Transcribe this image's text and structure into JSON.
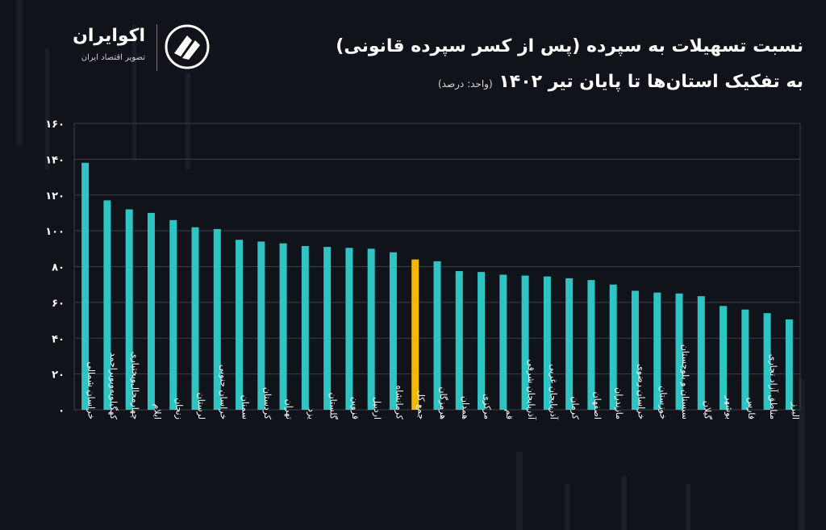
{
  "header": {
    "title_line1": "نسبت تسهیلات به سپرده (پس از کسر سپرده قانونی)",
    "title_line2": "به تفکیک استان‌ها تا پایان تیر ۱۴۰۲",
    "unit": "(واحد: درصد)"
  },
  "logo": {
    "name": "اکوایران",
    "tagline": "تصویر اقتصاد ایران"
  },
  "colors": {
    "bar": "#2ec4c4",
    "highlight": "#f5b700",
    "grid": "#3a3f48",
    "background": "#101319"
  },
  "chart_data": {
    "type": "bar",
    "title": "نسبت تسهیلات به سپرده (پس از کسر سپرده قانونی) به تفکیک استان‌ها تا پایان تیر ۱۴۰۲",
    "xlabel": "",
    "ylabel": "",
    "ylim": [
      0,
      160
    ],
    "yticks": [
      0,
      20,
      40,
      60,
      80,
      100,
      120,
      140,
      160
    ],
    "ytick_labels": [
      "۰",
      "۲۰",
      "۴۰",
      "۶۰",
      "۸۰",
      "۱۰۰",
      "۱۲۰",
      "۱۴۰",
      "۱۶۰"
    ],
    "grid": true,
    "highlight_category": "جمع کل",
    "categories": [
      "خراسان شمالی",
      "کهگیلویه‌وبویراحمد",
      "چهارمحال‌وبختیاری",
      "ایلام",
      "زنجان",
      "لرستان",
      "خراسان جنوبی",
      "سمنان",
      "کردستان",
      "تهران",
      "یزد",
      "گلستان",
      "قزوین",
      "اردبیل",
      "کرمانشاه",
      "جمع کل",
      "هرمزگان",
      "همدان",
      "مرکزی",
      "قم",
      "آذربایجان شرقی",
      "آذربایجان غربی",
      "کرمان",
      "اصفهان",
      "مازندران",
      "خراسان رضوی",
      "خوزستان",
      "سیستان و بلوچستان",
      "گیلان",
      "بوشهر",
      "فارس",
      "مناطق آزاد تجاری",
      "البرز"
    ],
    "values": [
      138,
      117,
      112,
      110,
      106,
      102,
      101,
      95,
      94,
      93,
      91.5,
      91,
      90.5,
      90,
      88,
      84,
      83,
      77.5,
      77,
      75.5,
      75,
      74.5,
      73.5,
      72.5,
      70,
      66.5,
      65.5,
      65,
      63.5,
      58,
      56,
      54,
      50.5
    ]
  }
}
